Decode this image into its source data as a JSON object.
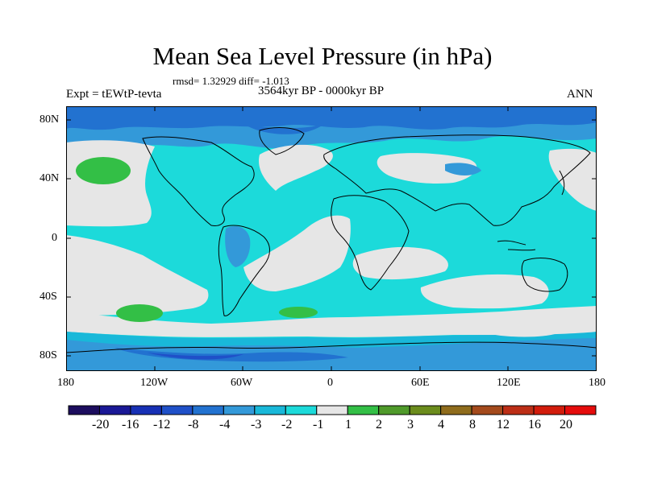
{
  "title": "Mean Sea Level Pressure (in hPa)",
  "stats": "rmsd= 1.32929 diff= -1.013",
  "experiment": "Expt = tEWtP-tevta",
  "period": "3564kyr BP - 0000kyr BP",
  "season": "ANN",
  "y_axis_labels": [
    "80N",
    "40N",
    "0",
    "40S",
    "80S"
  ],
  "x_axis_labels": [
    "180",
    "120W",
    "60W",
    "0",
    "60E",
    "120E",
    "180"
  ],
  "colorbar": {
    "labels": [
      "-20",
      "-16",
      "-12",
      "-8",
      "-4",
      "-3",
      "-2",
      "-1",
      "1",
      "2",
      "3",
      "4",
      "8",
      "12",
      "16",
      "20"
    ],
    "colors": [
      "#1c0d5e",
      "#1a1896",
      "#1730b5",
      "#1f50c8",
      "#2272d0",
      "#3399d9",
      "#19b8d9",
      "#1cdada",
      "#e6e6e6",
      "#33bf46",
      "#4f9a2a",
      "#6b8c1c",
      "#8f6c1c",
      "#a44a1c",
      "#bc2e16",
      "#d21c0c",
      "#e50c0c"
    ]
  },
  "map_colors": {
    "land_neutral": "#e6e6e6",
    "minus1": "#1cdada",
    "minus2": "#19b8d9",
    "minus3": "#3399d9",
    "minus4": "#2272d0",
    "minus8": "#1f50c8",
    "plus2": "#33bf46",
    "coast": "#000000"
  }
}
